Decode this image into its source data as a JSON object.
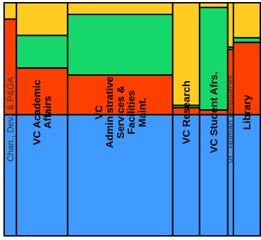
{
  "colors": {
    "yellow": "#FFCC1F",
    "green": "#16D86A",
    "red": "#FF3F00",
    "blue": "#3F9BFF",
    "border": "#000000"
  },
  "chart_data": {
    "type": "mosaic",
    "title": "",
    "xlabel": "",
    "ylabel": "",
    "segment_order": [
      "blue",
      "red",
      "green",
      "yellow"
    ],
    "columns": [
      {
        "label": "Chan., Dev., & P&GA",
        "label_style": "normal",
        "width_share": 0.048,
        "segments": {
          "blue": 0.52,
          "red": 0.41,
          "green": 0.0,
          "yellow": 0.07
        }
      },
      {
        "label": "VC Academic Affairs",
        "label_style": "bold",
        "width_share": 0.2,
        "segments": {
          "blue": 0.52,
          "red": 0.2,
          "green": 0.14,
          "yellow": 0.14
        }
      },
      {
        "label": "VC Administrative Services & Facilities Maint.",
        "label_style": "bold",
        "width_share": 0.41,
        "segments": {
          "blue": 0.52,
          "red": 0.17,
          "green": 0.26,
          "yellow": 0.05
        }
      },
      {
        "label": "VC Research",
        "label_style": "bold",
        "width_share": 0.105,
        "segments": {
          "blue": 0.52,
          "red": 0.03,
          "green": 0.01,
          "yellow": 0.44
        }
      },
      {
        "label": "VC Student Afrs.",
        "label_style": "bold",
        "width_share": 0.11,
        "segments": {
          "blue": 0.52,
          "red": 0.02,
          "green": 0.44,
          "yellow": 0.02
        }
      },
      {
        "label": "VC Human Resources",
        "label_style": "normal",
        "width_share": 0.022,
        "segments": {
          "blue": 0.52,
          "red": 0.28,
          "green": 0.01,
          "yellow": 0.19
        }
      },
      {
        "label": "Library",
        "label_style": "bold",
        "width_share": 0.105,
        "segments": {
          "blue": 0.52,
          "red": 0.31,
          "green": 0.02,
          "yellow": 0.15
        }
      }
    ]
  }
}
